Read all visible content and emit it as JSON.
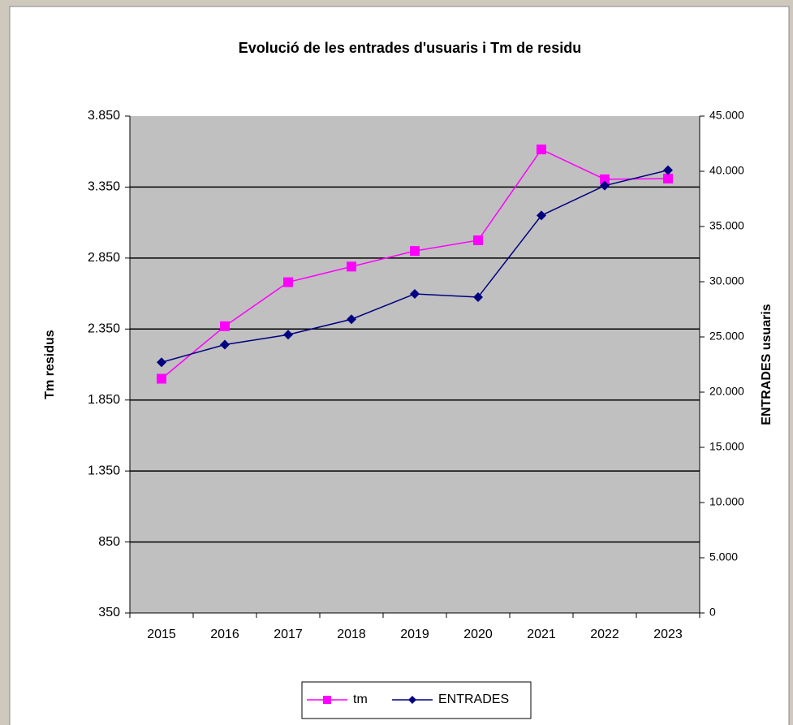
{
  "chart_data": {
    "type": "line",
    "title": "Evolució  de les entrades d'usuaris i Tm de residu",
    "ylabel": "Tm residus",
    "y2label": "ENTRADES  usuaris",
    "categories": [
      "2015",
      "2016",
      "2017",
      "2018",
      "2019",
      "2020",
      "2021",
      "2022",
      "2023"
    ],
    "series": [
      {
        "name": "tm",
        "color": "#ff00ff",
        "marker": "square",
        "values": [
          2000,
          2370,
          2680,
          2790,
          2900,
          2975,
          3615,
          3405,
          3410
        ]
      },
      {
        "name": "ENTRADES",
        "color": "#000080",
        "marker": "diamond",
        "axis": "y2",
        "values": [
          22700,
          24300,
          25200,
          26600,
          28900,
          28600,
          36000,
          38700,
          40100
        ]
      }
    ],
    "ylim": [
      350,
      3850
    ],
    "yticks": [
      350,
      850,
      {
        "value": 1350,
        "label": "1.350"
      },
      {
        "value": 1850,
        "label": "1.850"
      },
      {
        "value": 2350,
        "label": "2.350"
      },
      {
        "value": 2850,
        "label": "2.850"
      },
      {
        "value": 3350,
        "label": "3.350"
      },
      {
        "value": 3850,
        "label": "3.850"
      }
    ],
    "y2lim": [
      0,
      45000
    ],
    "y2ticks": [
      0,
      {
        "value": 5000,
        "label": "5.000"
      },
      {
        "value": 10000,
        "label": "10.000"
      },
      {
        "value": 15000,
        "label": "15.000"
      },
      {
        "value": 20000,
        "label": "20.000"
      },
      {
        "value": 25000,
        "label": "25.000"
      },
      {
        "value": 30000,
        "label": "30.000"
      },
      {
        "value": 35000,
        "label": "35.000"
      },
      {
        "value": 40000,
        "label": "40.000"
      },
      {
        "value": 45000,
        "label": "45.000"
      }
    ],
    "grid": true,
    "legend": "bottom"
  }
}
